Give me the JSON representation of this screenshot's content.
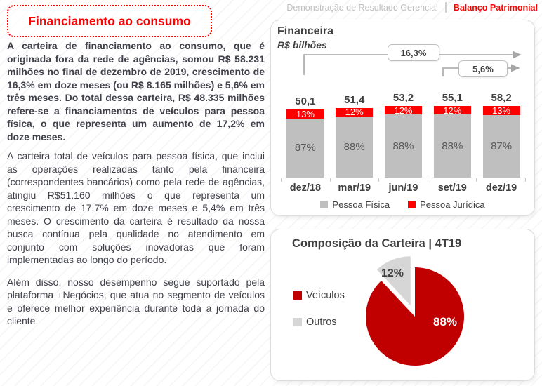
{
  "header": {
    "title": "Financiamento ao consumo",
    "nav": [
      {
        "label": "Demonstração de Resultado Gerencial",
        "active": false
      },
      {
        "label": "Balanço Patrimonial",
        "active": true
      }
    ]
  },
  "article": {
    "paragraphs": [
      {
        "bold": true,
        "text": "A carteira de financiamento ao consumo, que é originada fora da rede de agências, somou R$ 58.231 milhões no final de dezembro de 2019, crescimento de 16,3% em doze meses (ou R$ 8.165 milhões) e 5,6% em três meses. Do total dessa carteira, R$ 48.335 milhões refere-se a financiamentos de veículos para pessoa física, o que representa um aumento de 17,2% em doze meses."
      },
      {
        "bold": false,
        "text": "A carteira total de veículos para pessoa física, que inclui as operações realizadas tanto pela financeira (correspondentes bancários) como pela rede de agências, atingiu R$51.160 milhões o que representa um crescimento de 17,7% em doze meses e 5,4% em três meses. O crescimento da carteira é resultado da nossa busca contínua pela qualidade no atendimento em conjunto com soluções inovadoras que foram implementadas ao longo do período."
      },
      {
        "bold": false,
        "text": "Além disso, nosso desempenho segue suportado pela plataforma +Negócios, que atua no segmento de veículos e oferece melhor experiência durante toda a jornada do cliente."
      }
    ]
  },
  "chart_data": [
    {
      "type": "bar",
      "stacked": true,
      "title": "Financeira",
      "subtitle": "R$ bilhões",
      "categories": [
        "dez/18",
        "mar/19",
        "jun/19",
        "set/19",
        "dez/19"
      ],
      "totals": [
        50.1,
        51.4,
        53.2,
        55.1,
        58.2
      ],
      "total_labels": [
        "50,1",
        "51,4",
        "53,2",
        "55,1",
        "58,2"
      ],
      "series": [
        {
          "name": "Pessoa Física",
          "color": "#BFBFBF",
          "values_pct": [
            87,
            88,
            88,
            88,
            87
          ],
          "labels": [
            "87%",
            "88%",
            "88%",
            "88%",
            "87%"
          ]
        },
        {
          "name": "Pessoa Jurídica",
          "color": "#FE0000",
          "values_pct": [
            13,
            12,
            12,
            12,
            13
          ],
          "labels": [
            "13%",
            "12%",
            "12%",
            "12%",
            "13%"
          ]
        }
      ],
      "annotations": [
        {
          "label": "16,3%",
          "span": "dez/18 → dez/19"
        },
        {
          "label": "5,6%",
          "span": "set/19 → dez/19"
        }
      ],
      "legend_position": "bottom",
      "grid": false
    },
    {
      "type": "pie",
      "title": "Composição da Carteira | 4T19",
      "slices": [
        {
          "name": "Veículos",
          "value_pct": 88,
          "label": "88%",
          "color": "#C00000",
          "exploded": false
        },
        {
          "name": "Outros",
          "value_pct": 12,
          "label": "12%",
          "color": "#D6D6D6",
          "exploded": true
        }
      ],
      "legend_position": "left"
    }
  ],
  "colors": {
    "accent_red": "#FE0000",
    "dark_red": "#C00000",
    "bar_gray": "#BFBFBF",
    "pie_gray": "#D6D6D6",
    "text_dark": "#3F4049",
    "chart_text": "#404040",
    "nav_inactive": "#BFBFBF",
    "arrow_gray": "#A6A6A6"
  }
}
